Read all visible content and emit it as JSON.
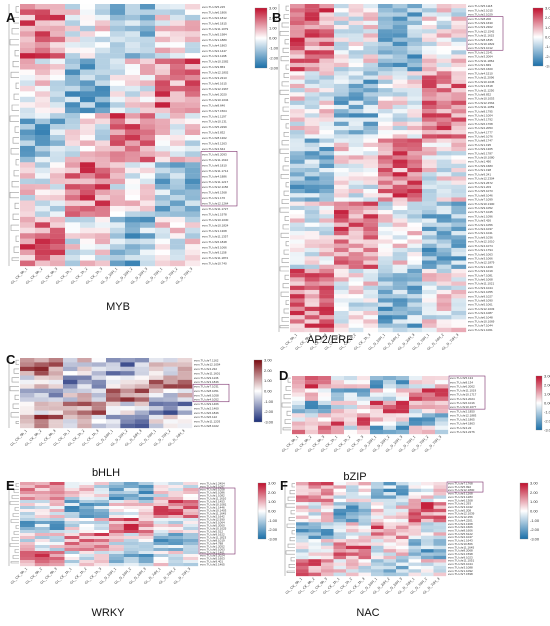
{
  "figure": {
    "title": ""
  },
  "colors": {
    "high": "#c0102e",
    "mid": "#ffffff",
    "low": "#1a6fa8",
    "bhlh_high": "#7a0a10",
    "bhlh_low": "#1c2f7a",
    "highlight_box": "#7b2d6b"
  },
  "columns": [
    "GL_CK_0h_1",
    "GL_CK_0h_2",
    "GL_CK_0h_3",
    "GL_CK_1h_1",
    "GL_CK_1h_2",
    "GL_CK_1h_3",
    "GL_D_2dH_1",
    "GL_D_2dH_2",
    "GL_D_2dH_3",
    "GL_D_7dH_1",
    "GL_D_7dH_2",
    "GL_D_7dH_3"
  ],
  "legend_ticks": [
    "3.00",
    "2.00",
    "1.00",
    "0.00",
    "-1.00",
    "-2.00",
    "-3.00"
  ],
  "panels": [
    {
      "letter": "A",
      "family": "MYB",
      "rows": 48,
      "genes": [
        "evm.TU.chr5.215",
        "evm.TU.chr6.1806",
        "evm.TU.chr2.1812",
        "evm.TU.chr6.1815",
        "evm.TU.chr11.1079",
        "evm.TU.chr5.1984",
        "evm.TU.chr1.1880",
        "evm.TU.chr4.1863",
        "evm.TU.chr2.1447",
        "evm.TU.chr4.1198",
        "evm.TU.chr10.1582",
        "evm.TU.chr9.863",
        "evm.TU.chr12.1802",
        "evm.TU.chr3.2313",
        "evm.TU.chr6.1615",
        "evm.TU.chr12.1967",
        "evm.TU.chr6.2020",
        "evm.TU.chr10.1034",
        "evm.TU.chr8.646",
        "evm.TU.chr7.1504",
        "evm.TU.chr1.1197",
        "evm.TU.chr10.131",
        "evm.TU.chr5.2299",
        "evm.TU.chr3.832",
        "evm.TU.chr8.1302",
        "evm.TU.chr3.1263",
        "evm.TU.chr4.644",
        "evm.TU.chr5.2093",
        "evm.TU.chr11.1610",
        "evm.TU.chr9.1810",
        "evm.TU.chr11.1714",
        "evm.TU.chr4.1886",
        "evm.TU.chr11.1217",
        "evm.TU.chr12.1156",
        "evm.TU.chr9.1368",
        "evm.TU.chr1.176",
        "evm.TU.chr12.1264",
        "evm.TU.chr11.1727",
        "evm.TU.chr1.1978",
        "evm.TU.chr10.1030",
        "evm.TU.chr10.1824",
        "evm.TU.chr1.1308",
        "evm.TU.chr11.1357",
        "evm.TU.chr6.1848",
        "evm.TU.chr3.1066",
        "evm.TU.chr9.1158",
        "evm.TU.chr11.1872",
        "evm.TU.chr10.740"
      ]
    },
    {
      "letter": "B",
      "family": "AP2/ERF",
      "rows": 78,
      "genes": [
        "evm.TU.chr5.1118",
        "evm.TU.chr2.1015",
        "evm.TU.chr2.1029",
        "evm.TU.chr8.200",
        "evm.TU.chr9.1630",
        "evm.TU.chr3.2302",
        "evm.TU.chr12.1542",
        "evm.TU.chr11.1615",
        "evm.TU.chr8.1835",
        "evm.TU.chr10.1822",
        "evm.TU.chr3.1012",
        "evm.TU.chr1.2141",
        "evm.TU.chr3.2064",
        "evm.TU.chr11.1864",
        "evm.TU.chr1.849",
        "evm.TU.chr6.1600",
        "evm.TU.chr4.1510",
        "evm.TU.chr11.2096",
        "evm.TU.chr10.1045",
        "evm.TU.chr1.1518",
        "evm.TU.chr11.1250",
        "evm.TU.chr8.832",
        "evm.TU.chr10.1053",
        "evm.TU.chr12.1564",
        "evm.TU.chr11.1059",
        "evm.TU.chr8.1795",
        "evm.TU.chr1.1004",
        "evm.TU.chr3.1792",
        "evm.TU.chr6.1768",
        "evm.TU.chr2.2053",
        "evm.TU.chr4.1777",
        "evm.TU.chr6.1076",
        "evm.TU.chr8.1747",
        "evm.TU.chr1.195",
        "evm.TU.chr9.1305",
        "evm.TU.chr5.1787",
        "evm.TU.chr10.1080",
        "evm.TU.chr1.490",
        "evm.TU.chr9.1683",
        "evm.TU.chr1.198",
        "evm.TU.chr9.241",
        "evm.TU.chr12.2304",
        "evm.TU.chr3.2672",
        "evm.TU.chr1.203",
        "evm.TU.chr5.1073",
        "evm.TU.chr8.1046",
        "evm.TU.chr7.1099",
        "evm.TU.chr10.1300",
        "evm.TU.chr9.1052",
        "evm.TU.chr7.1045",
        "evm.TU.chr1.1096",
        "evm.TU.chr3.426",
        "evm.TU.chr1.1056",
        "evm.TU.chr4.1037",
        "evm.TU.chr1.1041",
        "evm.TU.chr9.1036",
        "evm.TU.chr12.1010",
        "evm.TU.chr4.1074",
        "evm.TU.chr1.1794",
        "evm.TU.chr6.1063",
        "evm.TU.chr3.1066",
        "evm.TU.chr12.1879",
        "evm.TU.chr1.1409",
        "evm.TU.chr3.1019",
        "evm.TU.chr7.1081",
        "evm.TU.chr6.1068",
        "evm.TU.chr11.1021",
        "evm.TU.chr3.1044",
        "evm.TU.chr2.1055",
        "evm.TU.chr9.1027",
        "evm.TU.chr8.1090",
        "evm.TU.chr5.1061",
        "evm.TU.chr12.1033",
        "evm.TU.chr4.1087",
        "evm.TU.chr6.1048",
        "evm.TU.chr10.1069",
        "evm.TU.chr7.1044",
        "evm.TU.chr1.1061"
      ]
    },
    {
      "letter": "C",
      "family": "bHLH",
      "rows": 16,
      "genes": [
        "evm.TU.chr7.1162",
        "evm.TU.chr12.1054",
        "evm.TU.chr4.232",
        "evm.TU.chr11.1601",
        "evm.TU.chr9.1136",
        "evm.TU.chr3.1846",
        "evm.TU.chr7.1031",
        "evm.TU.chr8.1051",
        "evm.TU.chr8.1058",
        "evm.TU.chr4.1052",
        "evm.TU.chr9.1466",
        "evm.TU.chr2.1460",
        "evm.TU.chr6.1846",
        "evm.TU.chr6.122",
        "evm.TU.chr11.1203",
        "evm.TU.chr8.1022"
      ]
    },
    {
      "letter": "D",
      "family": "bZIP",
      "rows": 14,
      "genes": [
        "evm.TU.chr5.134",
        "evm.TU.chr8.134",
        "evm.TU.chr6.2002",
        "evm.TU.chr11.1019",
        "evm.TU.chr10.1717",
        "evm.TU.chr4.2024",
        "evm.TU.chr6.1016",
        "evm.TU.chr10.1077",
        "evm.TU.chr2.1850",
        "evm.TU.chr12.1883",
        "evm.TU.chr2.1865",
        "evm.TU.chr4.1863",
        "evm.TU.chr4.22",
        "evm.TU.chr4.2276"
      ]
    },
    {
      "letter": "E",
      "family": "WRKY",
      "rows": 28,
      "genes": [
        "evm.TU.chr1.2454",
        "evm.TU.chr3.1097",
        "evm.TU.chr5.1058",
        "evm.TU.chr5.1086",
        "evm.TU.chr1.1082",
        "evm.TU.chr11.1610",
        "evm.TU.chr3.1453",
        "evm.TU.chr10.1081",
        "evm.TU.chr1.1446",
        "evm.TU.chr10.1403",
        "evm.TU.chr11.1645",
        "evm.TU.chr2.1642",
        "evm.TU.chr12.590",
        "evm.TU.chr3.1064",
        "evm.TU.chr5.2000",
        "evm.TU.chr10.1025",
        "evm.TU.chr5.512",
        "evm.TU.chr9.1622",
        "evm.TU.chr11.1823",
        "evm.TU.chr8.1019",
        "evm.TU.chr4.788",
        "evm.TU.chr1.2052",
        "evm.TU.chr5.1063",
        "evm.TU.chr1.1461",
        "evm.TU.chr3.2024",
        "evm.TU.chr5.1603",
        "evm.TU.chr9.401",
        "evm.TU.chr2.1465"
      ]
    },
    {
      "letter": "F",
      "family": "NAC",
      "rows": 28,
      "genes": [
        "evm.TU.chr7.1768",
        "evm.TU.chr5.992",
        "evm.TU.chr12.1800",
        "evm.TU.chr3.1268",
        "evm.TU.chr3.1283",
        "evm.TU.chr6.1308",
        "evm.TU.chr1.293",
        "evm.TU.chr3.1042",
        "evm.TU.chr5.208",
        "evm.TU.chr12.1039",
        "evm.TU.chr12.256",
        "evm.TU.chr4.2201",
        "evm.TU.chr4.1308",
        "evm.TU.chr2.1606",
        "evm.TU.chr8.1606",
        "evm.TU.chr5.6122",
        "evm.TU.chr2.1047",
        "evm.TU.chr1.1643",
        "evm.TU.chr10.866",
        "evm.TU.chr11.1645",
        "evm.TU.chr8.2068",
        "evm.TU.chr2.1598",
        "evm.TU.chr9.1023",
        "evm.TU.chr11.1051",
        "evm.TU.chr6.1044",
        "evm.TU.chr3.1088",
        "evm.TU.chr1.1092",
        "evm.TU.chr7.1598"
      ]
    }
  ],
  "chart_data": {
    "type": "heatmap",
    "title": "",
    "xlabel": "",
    "ylabel": "",
    "color_scale": [
      -3.0,
      3.0
    ],
    "column_labels": [
      "GL_CK_0h_1",
      "GL_CK_0h_2",
      "GL_CK_0h_3",
      "GL_CK_1h_1",
      "GL_CK_1h_2",
      "GL_CK_1h_3",
      "GL_D_2dH_1",
      "GL_D_2dH_2",
      "GL_D_2dH_3",
      "GL_D_7dH_1",
      "GL_D_7dH_2",
      "GL_D_7dH_3"
    ],
    "panels": [
      {
        "letter": "A",
        "family": "MYB",
        "n_genes": 48
      },
      {
        "letter": "B",
        "family": "AP2/ERF",
        "n_genes": 78
      },
      {
        "letter": "C",
        "family": "bHLH",
        "n_genes": 16
      },
      {
        "letter": "D",
        "family": "bZIP",
        "n_genes": 14
      },
      {
        "letter": "E",
        "family": "WRKY",
        "n_genes": 28
      },
      {
        "letter": "F",
        "family": "NAC",
        "n_genes": 28
      }
    ]
  }
}
